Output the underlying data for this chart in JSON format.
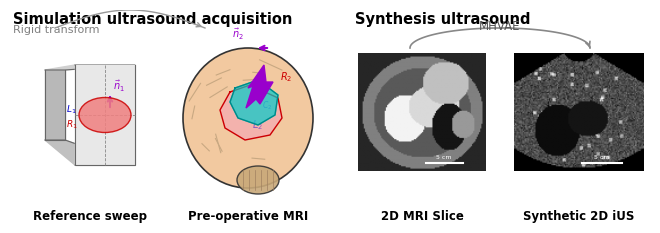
{
  "title_left": "Simulation ultrasound acquisition",
  "title_right": "Synthesis ultrasound",
  "subtitle_left": "Rigid transform",
  "label_mhvae": "MHVAE",
  "label_ref": "Reference sweep",
  "label_mri": "Pre-operative MRI",
  "label_mri_slice": "2D MRI Slice",
  "label_syn": "Synthetic 2D iUS",
  "bg_color": "#ffffff",
  "title_color": "#000000",
  "subtitle_color": "#808080",
  "purple_color": "#9900cc",
  "red_color": "#cc0000",
  "blue_color": "#0000cc",
  "arrow_color": "#888888",
  "brain_skin": "#f2c9a0",
  "brain_outline": "#333333",
  "cone_gray": "#cccccc",
  "cone_dark": "#999999",
  "cone_edge": "#666666",
  "red_fill": "#f08080",
  "cyan_fill": "#00cccc",
  "pink_fill": "#f4a0b8"
}
